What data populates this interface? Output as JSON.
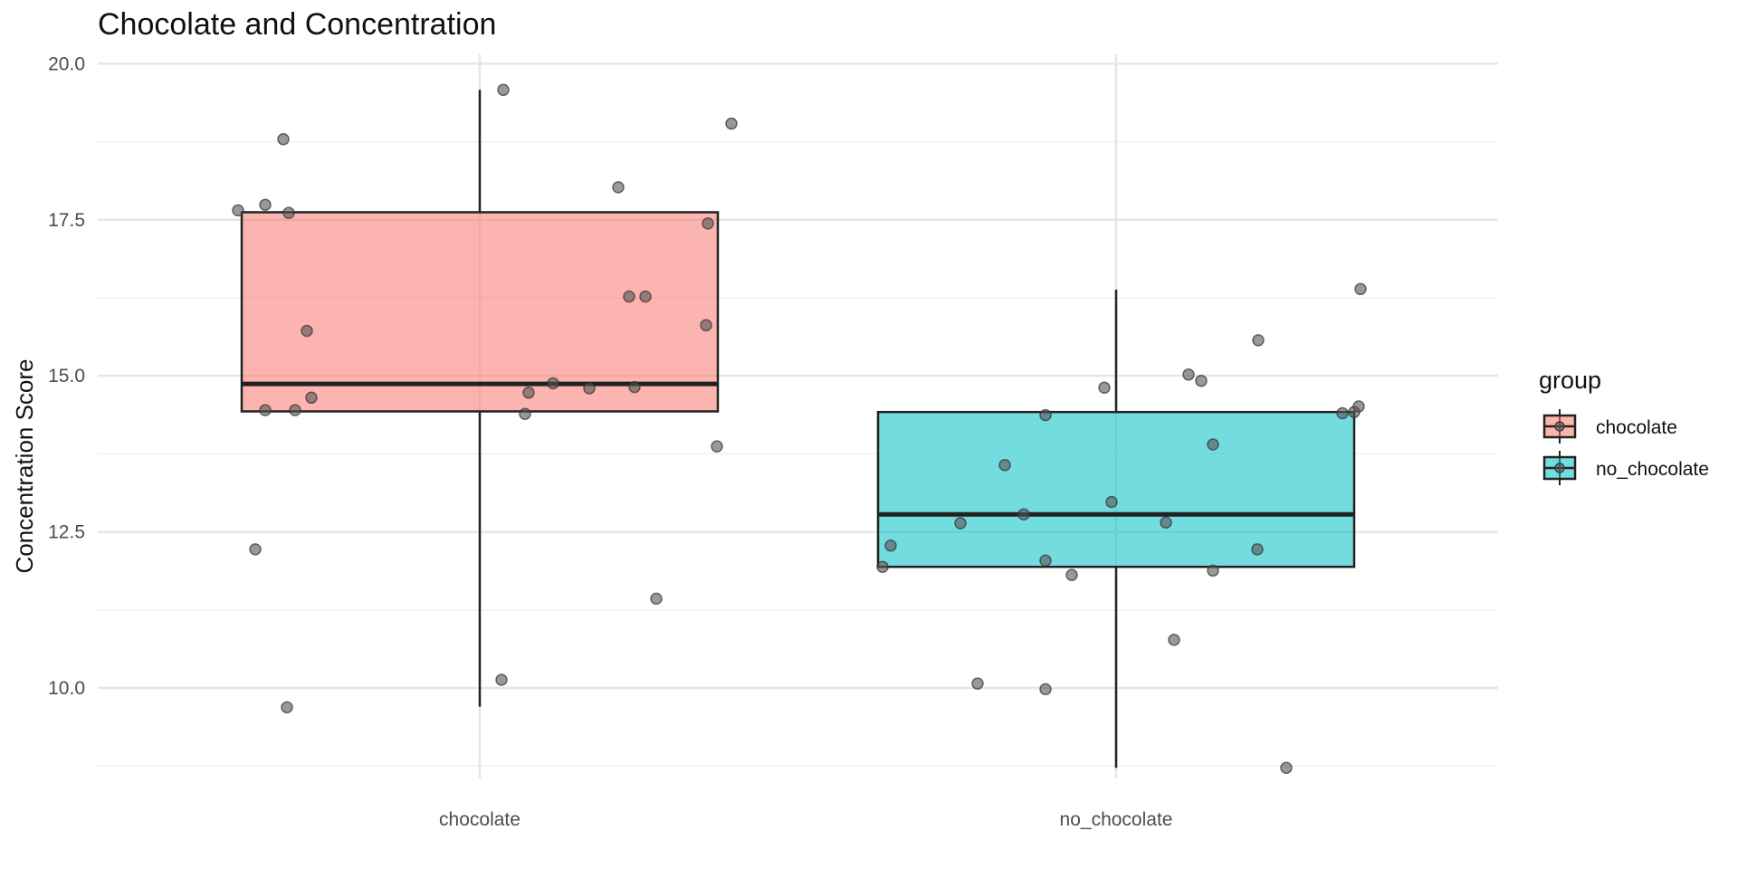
{
  "chart_data": {
    "type": "boxplot",
    "title": "Chocolate and Concentration",
    "xlabel": "",
    "ylabel": "Concentration Score",
    "categories": [
      "chocolate",
      "no_chocolate"
    ],
    "ylim": [
      8.55,
      20.15
    ],
    "yticks": [
      10.0,
      12.5,
      15.0,
      17.5,
      20.0
    ],
    "ytick_labels": [
      "10.0",
      "12.5",
      "15.0",
      "17.5",
      "20.0"
    ],
    "grid": true,
    "legend": {
      "title": "group",
      "position": "right",
      "entries": [
        "chocolate",
        "no_chocolate"
      ]
    },
    "colors": {
      "chocolate": "#F8766D",
      "no_chocolate": "#00BFC4",
      "points": "#555555",
      "box_outline": "#222222",
      "grid_major": "#e6e6e6",
      "grid_minor": "#f0f0f0"
    },
    "boxes": [
      {
        "group": "chocolate",
        "whisker_low": 9.7,
        "q1": 14.43,
        "median": 14.87,
        "q3": 17.62,
        "whisker_high": 19.58
      },
      {
        "group": "no_chocolate",
        "whisker_low": 8.72,
        "q1": 11.94,
        "median": 12.78,
        "q3": 14.42,
        "whisker_high": 16.38
      }
    ],
    "points": [
      {
        "group": "chocolate",
        "values": [
          17.65,
          18.79,
          17.74,
          17.61,
          15.72,
          14.65,
          14.45,
          14.45,
          12.22,
          9.69,
          19.58,
          10.13,
          14.39,
          14.73,
          14.88,
          14.8,
          18.02,
          16.27,
          16.27,
          14.82,
          11.43,
          17.44,
          15.81,
          13.87,
          19.04
        ]
      },
      {
        "group": "no_chocolate",
        "values": [
          11.94,
          12.28,
          12.64,
          10.07,
          13.57,
          12.78,
          9.98,
          14.37,
          12.04,
          11.81,
          14.81,
          12.98,
          12.65,
          10.77,
          15.02,
          14.92,
          13.9,
          11.88,
          12.22,
          15.57,
          8.72,
          14.4,
          14.42,
          14.51,
          16.39
        ]
      }
    ]
  }
}
